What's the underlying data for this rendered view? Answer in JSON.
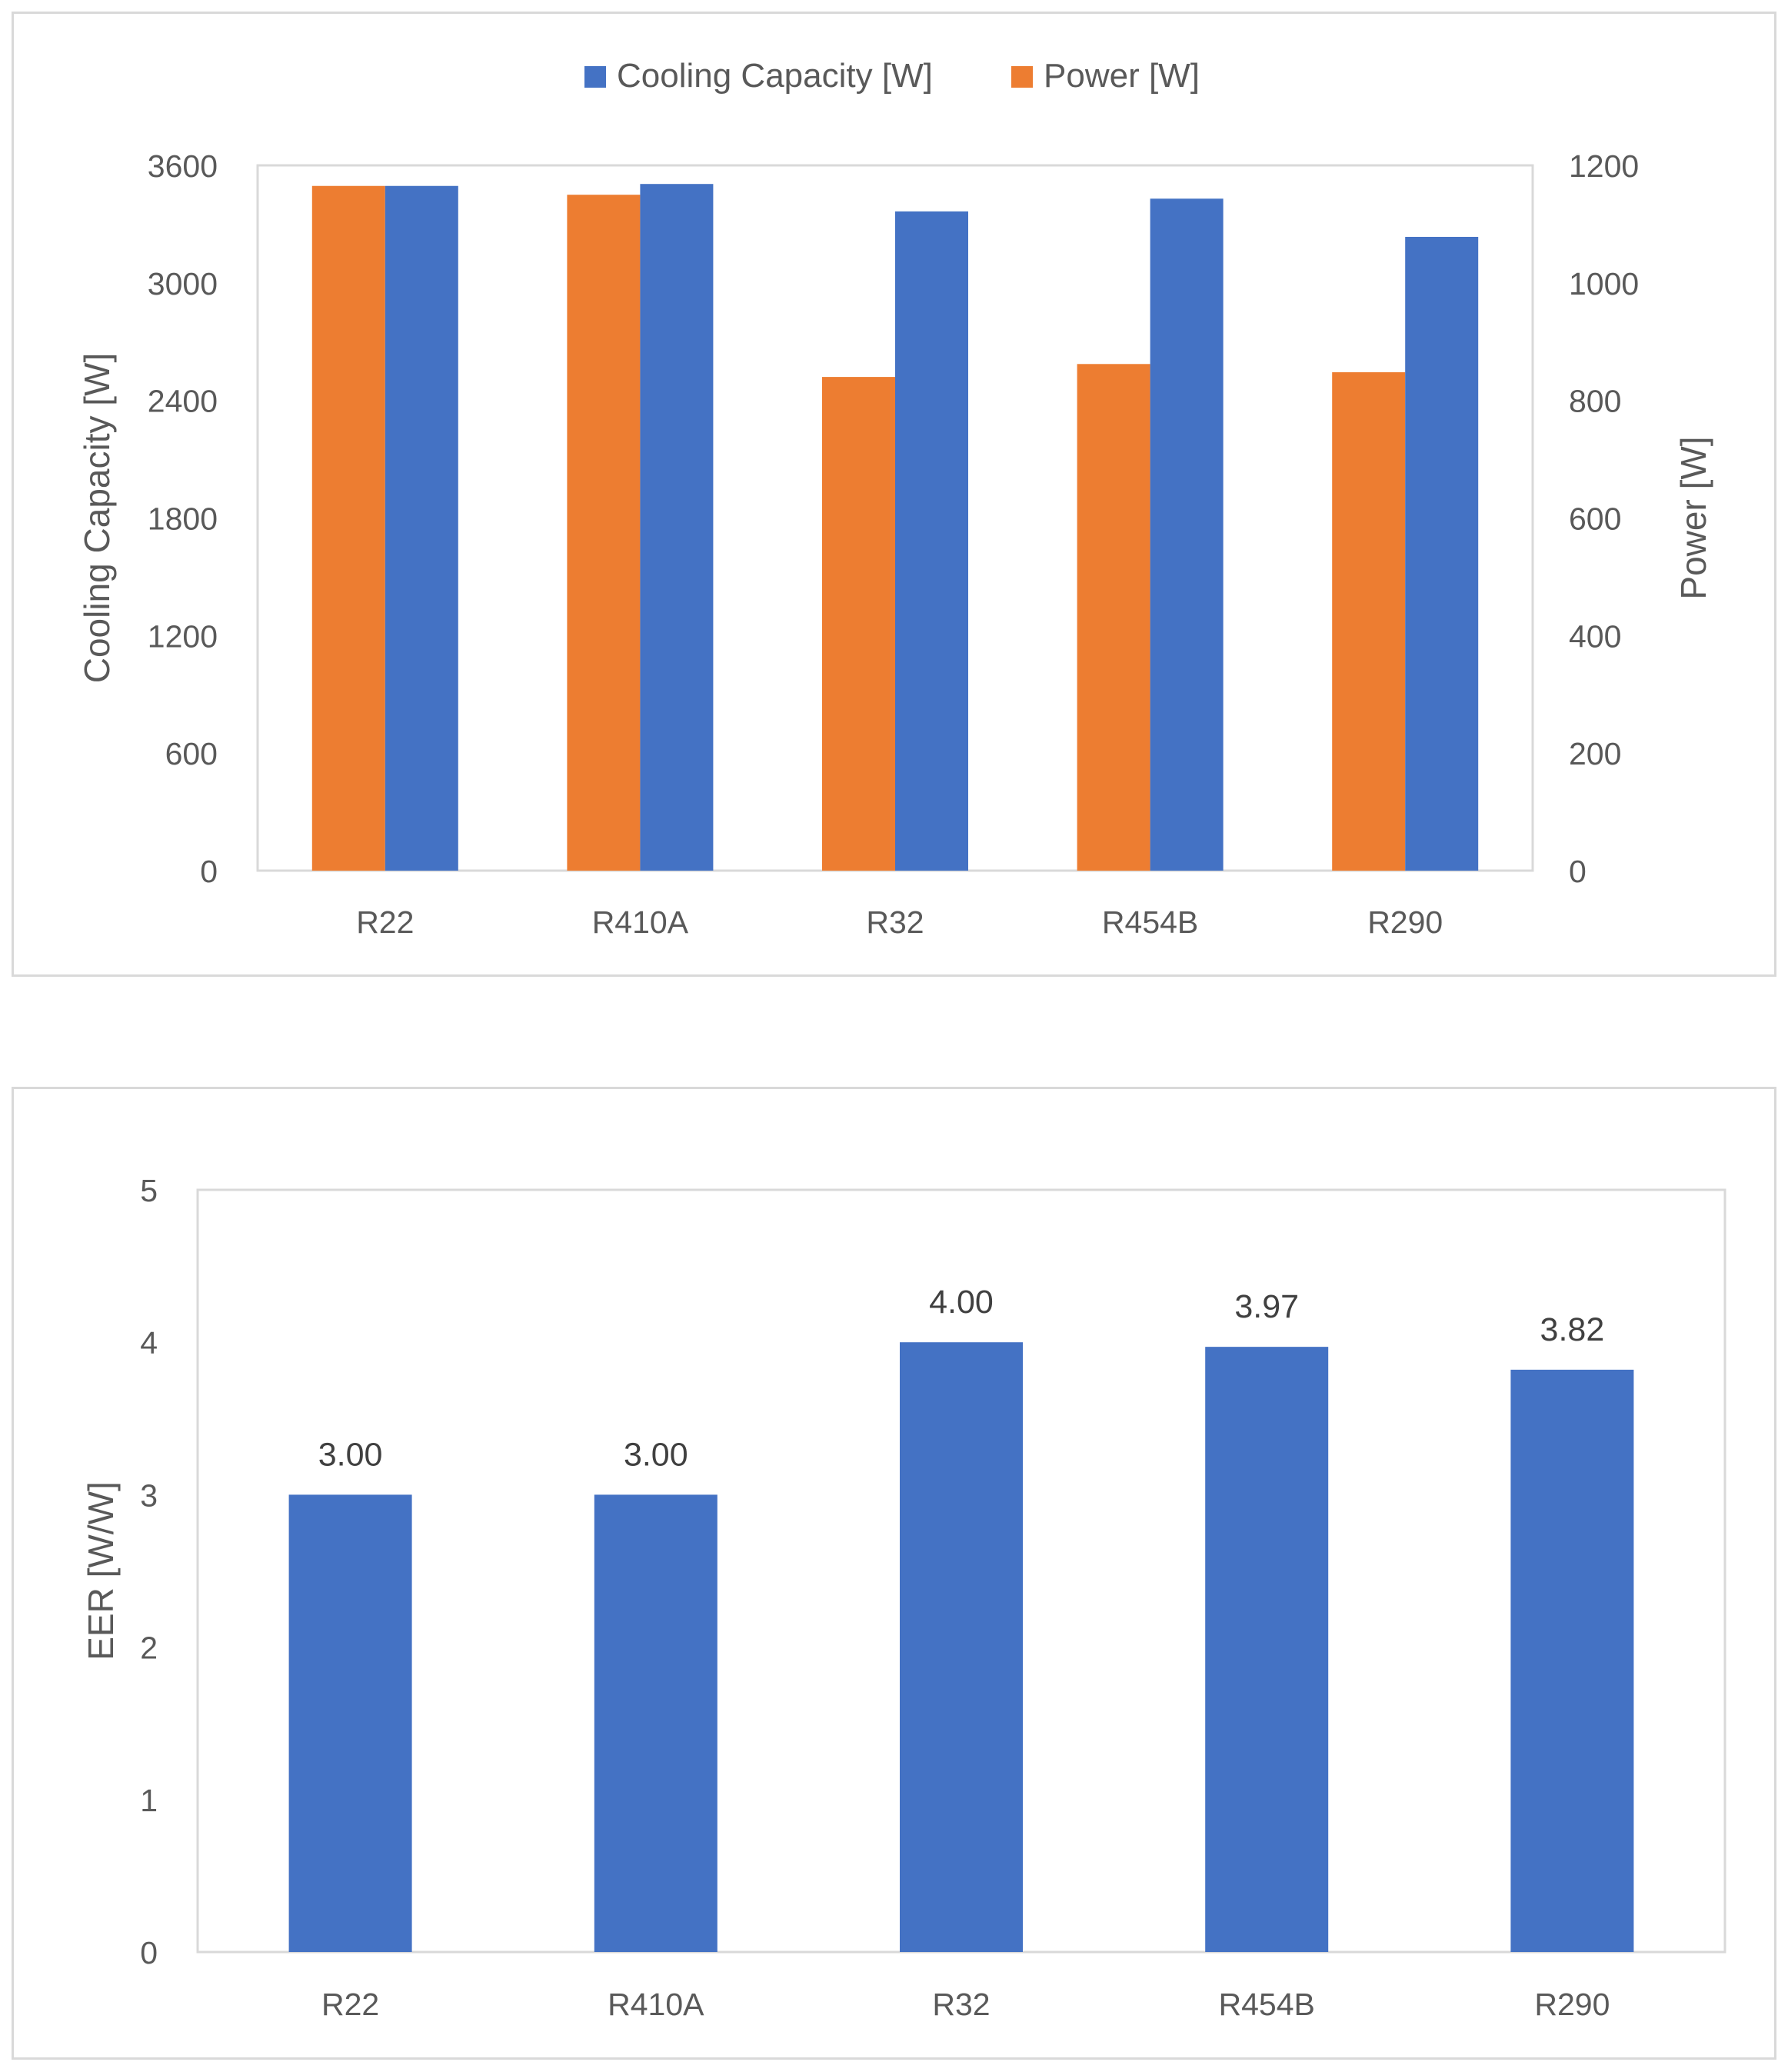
{
  "colors": {
    "cooling": "#4472C4",
    "power": "#ED7D31",
    "text": "#595959",
    "label": "#404040",
    "border": "#d9d9d9"
  },
  "chart_data": [
    {
      "type": "bar",
      "categories": [
        "R22",
        "R410A",
        "R32",
        "R454B",
        "R290"
      ],
      "series": [
        {
          "name": "Power [W]",
          "axis": "right",
          "values": [
            1165,
            1150,
            840,
            862,
            848
          ]
        },
        {
          "name": "Cooling Capacity [W]",
          "axis": "left",
          "values": [
            3495,
            3505,
            3365,
            3430,
            3235
          ]
        }
      ],
      "legend": [
        "Cooling Capacity [W]",
        "Power [W]"
      ],
      "legend_position": "top",
      "ylabel": "Cooling Capacity [W]",
      "y2label": "Power [W]",
      "ylim": [
        0,
        3600
      ],
      "y2lim": [
        0,
        1200
      ],
      "yticks": [
        "0",
        "600",
        "1200",
        "1800",
        "2400",
        "3000",
        "3600"
      ],
      "y2ticks": [
        "0",
        "200",
        "400",
        "600",
        "800",
        "1000",
        "1200"
      ],
      "grid": false
    },
    {
      "type": "bar",
      "categories": [
        "R22",
        "R410A",
        "R32",
        "R454B",
        "R290"
      ],
      "values": [
        3.0,
        3.0,
        4.0,
        3.97,
        3.82
      ],
      "data_labels": [
        "3.00",
        "3.00",
        "4.00",
        "3.97",
        "3.82"
      ],
      "ylabel": "EER [W/W]",
      "ylim": [
        0,
        5
      ],
      "yticks": [
        "0",
        "1",
        "2",
        "3",
        "4",
        "5"
      ],
      "grid": false
    }
  ]
}
